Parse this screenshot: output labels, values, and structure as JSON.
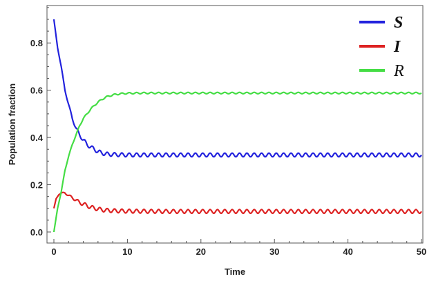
{
  "chart_data": {
    "type": "line",
    "title": "",
    "xlabel": "Time",
    "ylabel": "Population fraction",
    "xlim": [
      0,
      50
    ],
    "ylim": [
      0,
      0.9
    ],
    "x_ticks": [
      0,
      10,
      20,
      30,
      40,
      50
    ],
    "y_ticks": [
      0.0,
      0.2,
      0.4,
      0.6,
      0.8
    ],
    "x_tick_labels": [
      "0",
      "10",
      "20",
      "30",
      "40",
      "50"
    ],
    "y_tick_labels": [
      "0.0",
      "0.2",
      "0.4",
      "0.6",
      "0.8"
    ],
    "legend_position": "top-right",
    "grid": false,
    "series": [
      {
        "name": "S",
        "color": "#2222dd",
        "legend_bold": true,
        "x": [
          0,
          0.5,
          1,
          1.5,
          2,
          2.5,
          3,
          3.5,
          4,
          4.5,
          5,
          5.5,
          6,
          6.5,
          7,
          8,
          9,
          10,
          12,
          15,
          20,
          25,
          30,
          35,
          40,
          45,
          50
        ],
        "y": [
          0.9,
          0.78,
          0.7,
          0.6,
          0.54,
          0.48,
          0.44,
          0.41,
          0.39,
          0.37,
          0.36,
          0.35,
          0.34,
          0.335,
          0.33,
          0.328,
          0.327,
          0.326,
          0.326,
          0.326,
          0.326,
          0.326,
          0.326,
          0.326,
          0.326,
          0.326,
          0.326
        ],
        "oscillation_amplitude": 0.008,
        "oscillation_period": 1
      },
      {
        "name": "I",
        "color": "#dd2222",
        "legend_bold": true,
        "x": [
          0,
          0.3,
          0.7,
          1,
          1.5,
          2,
          2.5,
          3,
          3.5,
          4,
          5,
          6,
          7,
          8,
          10,
          15,
          20,
          25,
          30,
          35,
          40,
          45,
          50
        ],
        "y": [
          0.1,
          0.14,
          0.16,
          0.165,
          0.165,
          0.155,
          0.145,
          0.135,
          0.125,
          0.118,
          0.105,
          0.097,
          0.092,
          0.09,
          0.088,
          0.087,
          0.087,
          0.087,
          0.087,
          0.087,
          0.087,
          0.087,
          0.087
        ],
        "oscillation_amplitude": 0.008,
        "oscillation_period": 1
      },
      {
        "name": "R",
        "color": "#44dd44",
        "legend_bold": false,
        "x": [
          0,
          0.5,
          1,
          1.5,
          2,
          2.5,
          3,
          3.5,
          4,
          5,
          6,
          7,
          8,
          9,
          10,
          12,
          15,
          20,
          25,
          30,
          35,
          40,
          45,
          50
        ],
        "y": [
          0.0,
          0.1,
          0.17,
          0.26,
          0.32,
          0.37,
          0.41,
          0.45,
          0.48,
          0.52,
          0.55,
          0.57,
          0.58,
          0.585,
          0.587,
          0.588,
          0.588,
          0.588,
          0.588,
          0.588,
          0.588,
          0.588,
          0.588,
          0.588
        ],
        "oscillation_amplitude": 0.003,
        "oscillation_period": 1
      }
    ]
  }
}
